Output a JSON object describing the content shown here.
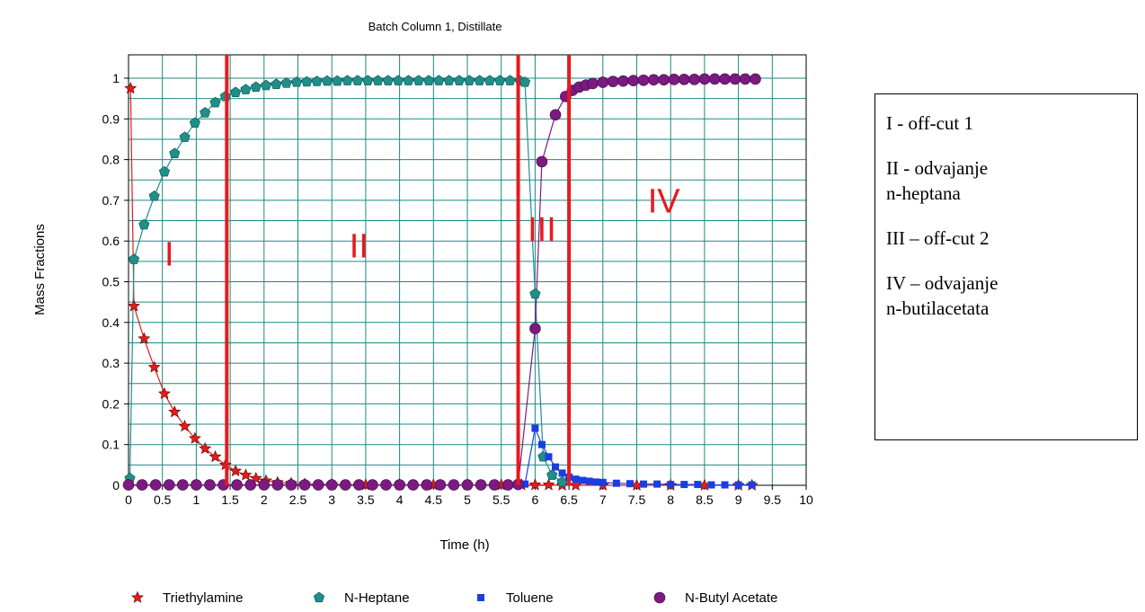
{
  "chart_data": {
    "type": "scatter",
    "title": "Batch Column 1, Distillate",
    "xlabel": "Time (h)",
    "ylabel": "Mass Fractions",
    "xlim": [
      0,
      10
    ],
    "ylim": [
      0,
      1.05
    ],
    "x_ticks": [
      "0",
      "0.5",
      "1",
      "1.5",
      "2",
      "2.5",
      "3",
      "3.5",
      "4",
      "4.5",
      "5",
      "5.5",
      "6",
      "6.5",
      "7",
      "7.5",
      "8",
      "8.5",
      "9",
      "9.5",
      "10"
    ],
    "y_ticks": [
      "0",
      "0.1",
      "0.2",
      "0.3",
      "0.4",
      "0.5",
      "0.6",
      "0.7",
      "0.8",
      "0.9",
      "1"
    ],
    "grid": true,
    "cut_lines_x": [
      1.45,
      5.75,
      6.5
    ],
    "region_labels": [
      {
        "text": "I",
        "x": 0.6,
        "y": 0.54
      },
      {
        "text": "II",
        "x": 3.4,
        "y": 0.56
      },
      {
        "text": "III",
        "x": 6.1,
        "y": 0.6
      },
      {
        "text": "IV",
        "x": 7.9,
        "y": 0.67
      }
    ],
    "series": [
      {
        "name": "Triethylamine",
        "color": "#e41c1c",
        "marker": "star",
        "x": [
          0.03,
          0.08,
          0.23,
          0.38,
          0.53,
          0.68,
          0.83,
          0.98,
          1.13,
          1.28,
          1.43,
          1.58,
          1.73,
          1.88,
          2.03,
          2.2,
          2.4,
          2.6,
          3.0,
          3.5,
          4.0,
          4.5,
          5.0,
          5.5,
          5.8,
          6.0,
          6.2,
          6.4,
          6.6,
          7.0,
          7.5,
          8.0,
          8.5,
          9.0,
          9.2
        ],
        "y": [
          0.975,
          0.44,
          0.36,
          0.29,
          0.225,
          0.18,
          0.145,
          0.115,
          0.09,
          0.07,
          0.05,
          0.035,
          0.025,
          0.017,
          0.011,
          0.007,
          0.005,
          0.003,
          0.002,
          0.001,
          0.001,
          0.001,
          0.001,
          0.001,
          0.001,
          0.001,
          0.001,
          0,
          0,
          0,
          0,
          0,
          0,
          0,
          0
        ]
      },
      {
        "name": "N-Heptane",
        "color": "#1f8f8a",
        "marker": "pentagon",
        "x": [
          0.02,
          0.08,
          0.23,
          0.38,
          0.53,
          0.68,
          0.83,
          0.98,
          1.13,
          1.28,
          1.43,
          1.58,
          1.73,
          1.88,
          2.03,
          2.18,
          2.33,
          2.48,
          2.63,
          2.78,
          2.93,
          3.08,
          3.23,
          3.38,
          3.53,
          3.68,
          3.83,
          3.98,
          4.13,
          4.28,
          4.43,
          4.58,
          4.73,
          4.88,
          5.03,
          5.18,
          5.33,
          5.48,
          5.63,
          5.78,
          5.85,
          6.0,
          6.12,
          6.25,
          6.4
        ],
        "y": [
          0.017,
          0.555,
          0.64,
          0.71,
          0.77,
          0.815,
          0.855,
          0.89,
          0.915,
          0.94,
          0.955,
          0.965,
          0.972,
          0.978,
          0.982,
          0.985,
          0.988,
          0.99,
          0.991,
          0.992,
          0.993,
          0.993,
          0.994,
          0.994,
          0.994,
          0.994,
          0.994,
          0.994,
          0.994,
          0.994,
          0.994,
          0.994,
          0.994,
          0.994,
          0.994,
          0.994,
          0.994,
          0.994,
          0.994,
          0.993,
          0.99,
          0.47,
          0.07,
          0.025,
          0.008
        ]
      },
      {
        "name": "Toluene",
        "color": "#1a3fe0",
        "marker": "square",
        "x": [
          5.85,
          6.0,
          6.1,
          6.2,
          6.3,
          6.4,
          6.5,
          6.6,
          6.7,
          6.8,
          6.9,
          7.0,
          7.2,
          7.4,
          7.6,
          7.8,
          8.0,
          8.2,
          8.4,
          8.6,
          8.8,
          9.0,
          9.2
        ],
        "y": [
          0.003,
          0.14,
          0.1,
          0.07,
          0.045,
          0.03,
          0.02,
          0.015,
          0.012,
          0.01,
          0.008,
          0.007,
          0.005,
          0.004,
          0.003,
          0.003,
          0.002,
          0.002,
          0.002,
          0.001,
          0.001,
          0.001,
          0.001
        ]
      },
      {
        "name": "N-Butyl Acetate",
        "color": "#7b1a80",
        "marker": "circle",
        "x": [
          0.0,
          0.2,
          0.4,
          0.6,
          0.8,
          1.0,
          1.2,
          1.4,
          1.6,
          1.8,
          2.0,
          2.2,
          2.4,
          2.6,
          2.8,
          3.0,
          3.2,
          3.4,
          3.6,
          3.8,
          4.0,
          4.2,
          4.4,
          4.6,
          4.8,
          5.0,
          5.2,
          5.4,
          5.6,
          5.75,
          6.0,
          6.1,
          6.3,
          6.45,
          6.55,
          6.65,
          6.75,
          6.85,
          7.0,
          7.15,
          7.3,
          7.45,
          7.6,
          7.75,
          7.9,
          8.05,
          8.2,
          8.35,
          8.5,
          8.65,
          8.8,
          8.95,
          9.1,
          9.25
        ],
        "y": [
          0.001,
          0.001,
          0.001,
          0.001,
          0.001,
          0.001,
          0.001,
          0.001,
          0.001,
          0.001,
          0.001,
          0.001,
          0.001,
          0.001,
          0.001,
          0.001,
          0.001,
          0.001,
          0.001,
          0.001,
          0.001,
          0.001,
          0.001,
          0.001,
          0.001,
          0.001,
          0.001,
          0.001,
          0.001,
          0.002,
          0.385,
          0.795,
          0.91,
          0.955,
          0.97,
          0.978,
          0.983,
          0.987,
          0.99,
          0.992,
          0.993,
          0.994,
          0.995,
          0.996,
          0.996,
          0.997,
          0.997,
          0.997,
          0.998,
          0.998,
          0.998,
          0.998,
          0.998,
          0.998
        ]
      }
    ],
    "legend": [
      "Triethylamine",
      "N-Heptane",
      "Toluene",
      "N-Butyl Acetate"
    ],
    "legend_position": "bottom"
  },
  "annotation_box": {
    "entries": [
      "I - off-cut 1",
      "II -  odvajanje\nn-heptana",
      "III – off-cut 2",
      "IV – odvajanje\nn-butilacetata"
    ]
  },
  "colors": {
    "grid": "#1b8a86",
    "cut_line": "#e8191e",
    "region_label": "#e8191e"
  }
}
